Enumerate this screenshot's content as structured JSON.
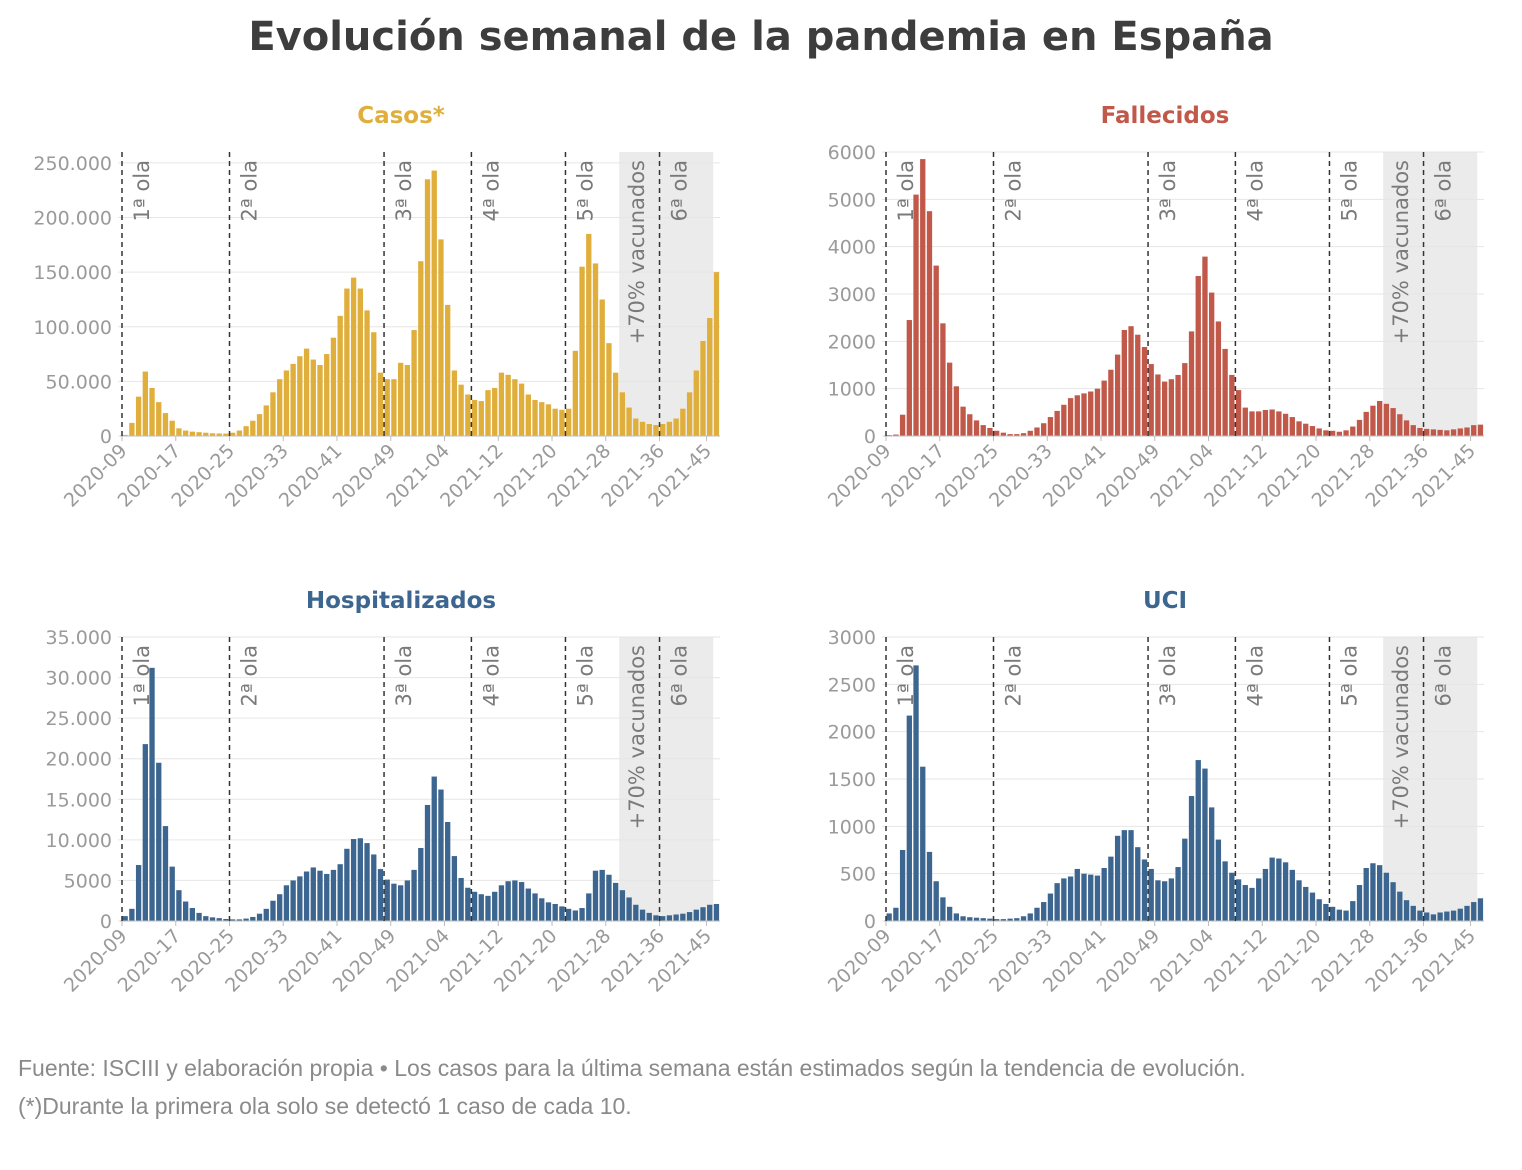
{
  "title": "Evolución semanal de la pandemia en España",
  "footnotes": [
    "Fuente: ISCIII y elaboración propia • Los casos para la última semana están estimados según la tendencia de evolución.",
    "(*)Durante la primera ola solo se detectó 1 caso de cada 10."
  ],
  "colors": {
    "casos": "#e0ae3b",
    "fallecidos": "#c0594a",
    "hospitalizados": "#3c6690",
    "uci": "#3c6690",
    "shade": "#ebebeb",
    "text": "#3d3d3d",
    "axis": "#999999"
  },
  "x_tick_labels": [
    "2020-09",
    "2020-17",
    "2020-25",
    "2020-33",
    "2020-41",
    "2020-49",
    "2021-04",
    "2021-12",
    "2021-20",
    "2021-28",
    "2021-36",
    "2021-45"
  ],
  "markers": [
    {
      "label": "1ª ola",
      "week_index": 0
    },
    {
      "label": "2ª ola",
      "week_index": 16
    },
    {
      "label": "3ª ola",
      "week_index": 39
    },
    {
      "label": "4ª ola",
      "week_index": 52
    },
    {
      "label": "5ª ola",
      "week_index": 66
    },
    {
      "label": "6ª ola",
      "week_index": 80
    }
  ],
  "shade": {
    "label": "+70% vacunados",
    "from_week_index": 74,
    "to_week_index": 88
  },
  "chart_data": [
    {
      "type": "bar",
      "title": "Casos*",
      "yticks": [
        0,
        50000,
        100000,
        150000,
        200000,
        250000
      ],
      "ytick_labels": [
        "0",
        "50.000",
        "100.000",
        "150.000",
        "200.000",
        "250.000"
      ],
      "ylim": [
        0,
        260000
      ],
      "values": [
        1000,
        12000,
        36000,
        59000,
        44000,
        31000,
        21000,
        14000,
        7000,
        5000,
        4000,
        3500,
        3000,
        2500,
        2300,
        2200,
        3000,
        5000,
        9000,
        14000,
        20000,
        28000,
        40000,
        52000,
        60000,
        66000,
        73000,
        80000,
        70000,
        65000,
        75000,
        90000,
        110000,
        135000,
        145000,
        135000,
        115000,
        95000,
        58000,
        52000,
        52000,
        67000,
        65000,
        97000,
        160000,
        235000,
        243000,
        180000,
        120000,
        60000,
        47000,
        38000,
        33000,
        32000,
        42000,
        44000,
        58000,
        56000,
        52000,
        48000,
        38000,
        33000,
        31000,
        29000,
        25000,
        24000,
        25000,
        78000,
        155000,
        185000,
        158000,
        125000,
        85000,
        58000,
        40000,
        26000,
        16000,
        13000,
        11000,
        10000,
        11000,
        13000,
        16000,
        25000,
        40000,
        60000,
        87000,
        108000,
        150000
      ]
    },
    {
      "type": "bar",
      "title": "Fallecidos",
      "yticks": [
        0,
        1000,
        2000,
        3000,
        4000,
        5000,
        6000
      ],
      "ytick_labels": [
        "0",
        "1000",
        "2000",
        "3000",
        "4000",
        "5000",
        "6000"
      ],
      "ylim": [
        0,
        6000
      ],
      "values": [
        20,
        30,
        450,
        2450,
        5100,
        5850,
        4750,
        3600,
        2380,
        1550,
        1050,
        620,
        460,
        330,
        230,
        170,
        110,
        70,
        40,
        40,
        60,
        110,
        180,
        270,
        400,
        530,
        660,
        800,
        860,
        900,
        940,
        1000,
        1170,
        1400,
        1720,
        2240,
        2320,
        2140,
        1880,
        1520,
        1300,
        1150,
        1200,
        1290,
        1540,
        2210,
        3380,
        3790,
        3030,
        2420,
        1840,
        1290,
        970,
        600,
        520,
        520,
        550,
        560,
        520,
        470,
        400,
        310,
        260,
        210,
        160,
        120,
        110,
        90,
        120,
        200,
        340,
        510,
        640,
        740,
        680,
        590,
        460,
        330,
        230,
        170,
        150,
        140,
        130,
        120,
        140,
        160,
        180,
        230,
        240
      ]
    },
    {
      "type": "bar",
      "title": "Hospitalizados",
      "yticks": [
        0,
        5000,
        10000,
        15000,
        20000,
        25000,
        30000,
        35000
      ],
      "ytick_labels": [
        "0",
        "5000",
        "10.000",
        "15.000",
        "20.000",
        "25.000",
        "30.000",
        "35.000"
      ],
      "ylim": [
        0,
        35000
      ],
      "values": [
        600,
        1500,
        6900,
        21800,
        31200,
        19500,
        11700,
        6700,
        3800,
        2400,
        1600,
        1000,
        600,
        450,
        350,
        250,
        200,
        200,
        300,
        500,
        900,
        1500,
        2500,
        3300,
        4400,
        5000,
        5500,
        6100,
        6600,
        6200,
        5800,
        6300,
        7000,
        8900,
        10100,
        10200,
        9600,
        8200,
        6400,
        5100,
        4600,
        4400,
        5000,
        6300,
        9000,
        14300,
        17800,
        16200,
        12200,
        8000,
        5300,
        4100,
        3600,
        3300,
        3100,
        3600,
        4400,
        4900,
        5000,
        4800,
        4000,
        3400,
        2800,
        2300,
        2100,
        1800,
        1500,
        1300,
        1600,
        3400,
        6200,
        6300,
        5700,
        4700,
        3800,
        2900,
        2000,
        1400,
        1000,
        700,
        600,
        700,
        800,
        900,
        1100,
        1400,
        1700,
        2000,
        2100
      ]
    },
    {
      "type": "bar",
      "title": "UCI",
      "yticks": [
        0,
        500,
        1000,
        1500,
        2000,
        2500,
        3000
      ],
      "ytick_labels": [
        "0",
        "500",
        "1000",
        "1500",
        "2000",
        "2500",
        "3000"
      ],
      "ylim": [
        0,
        3000
      ],
      "values": [
        80,
        140,
        750,
        2170,
        2700,
        1630,
        730,
        420,
        250,
        150,
        80,
        50,
        40,
        35,
        30,
        25,
        20,
        20,
        25,
        30,
        50,
        80,
        140,
        200,
        290,
        400,
        450,
        470,
        550,
        500,
        490,
        480,
        560,
        680,
        900,
        960,
        960,
        780,
        650,
        550,
        430,
        420,
        450,
        570,
        870,
        1320,
        1700,
        1610,
        1200,
        860,
        630,
        510,
        440,
        380,
        350,
        450,
        550,
        670,
        660,
        620,
        540,
        430,
        360,
        300,
        230,
        180,
        150,
        120,
        110,
        210,
        380,
        560,
        610,
        590,
        510,
        410,
        310,
        220,
        160,
        110,
        90,
        70,
        90,
        100,
        110,
        130,
        160,
        200,
        240
      ]
    }
  ]
}
